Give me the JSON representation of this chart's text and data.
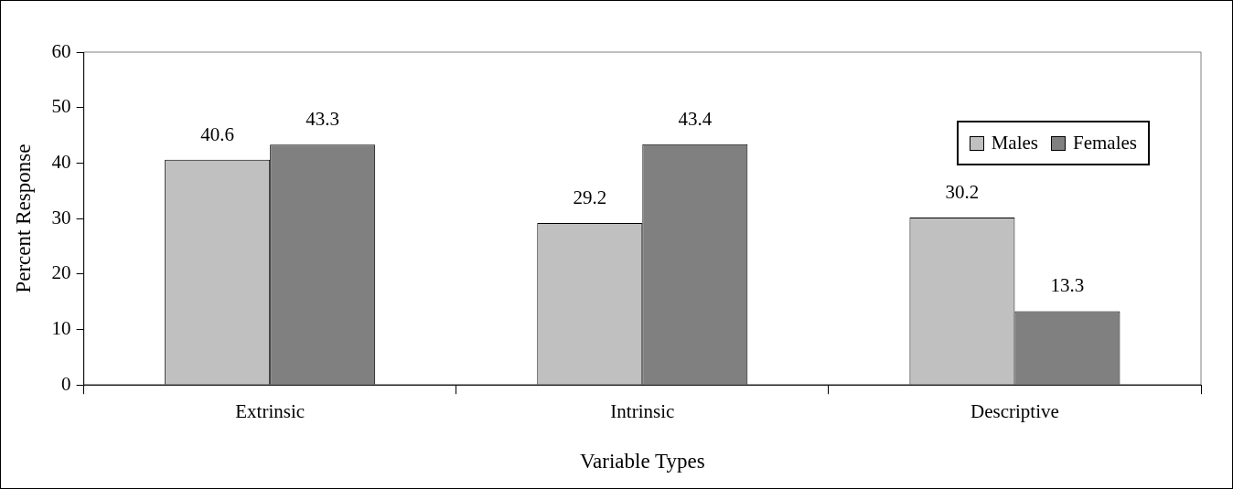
{
  "chart_data": {
    "type": "bar",
    "xlabel": "Variable Types",
    "ylabel": "Percent Response",
    "categories": [
      "Extrinsic",
      "Intrinsic",
      "Descriptive"
    ],
    "series": [
      {
        "name": "Males",
        "color": "#c0c0c0",
        "values": [
          40.6,
          29.2,
          30.2
        ]
      },
      {
        "name": "Females",
        "color": "#808080",
        "values": [
          43.3,
          43.4,
          13.3
        ]
      }
    ],
    "ylim": [
      0,
      60
    ],
    "yticks": [
      0,
      10,
      20,
      30,
      40,
      50,
      60
    ],
    "grid": false,
    "legend": "top right",
    "data_labels": true
  }
}
